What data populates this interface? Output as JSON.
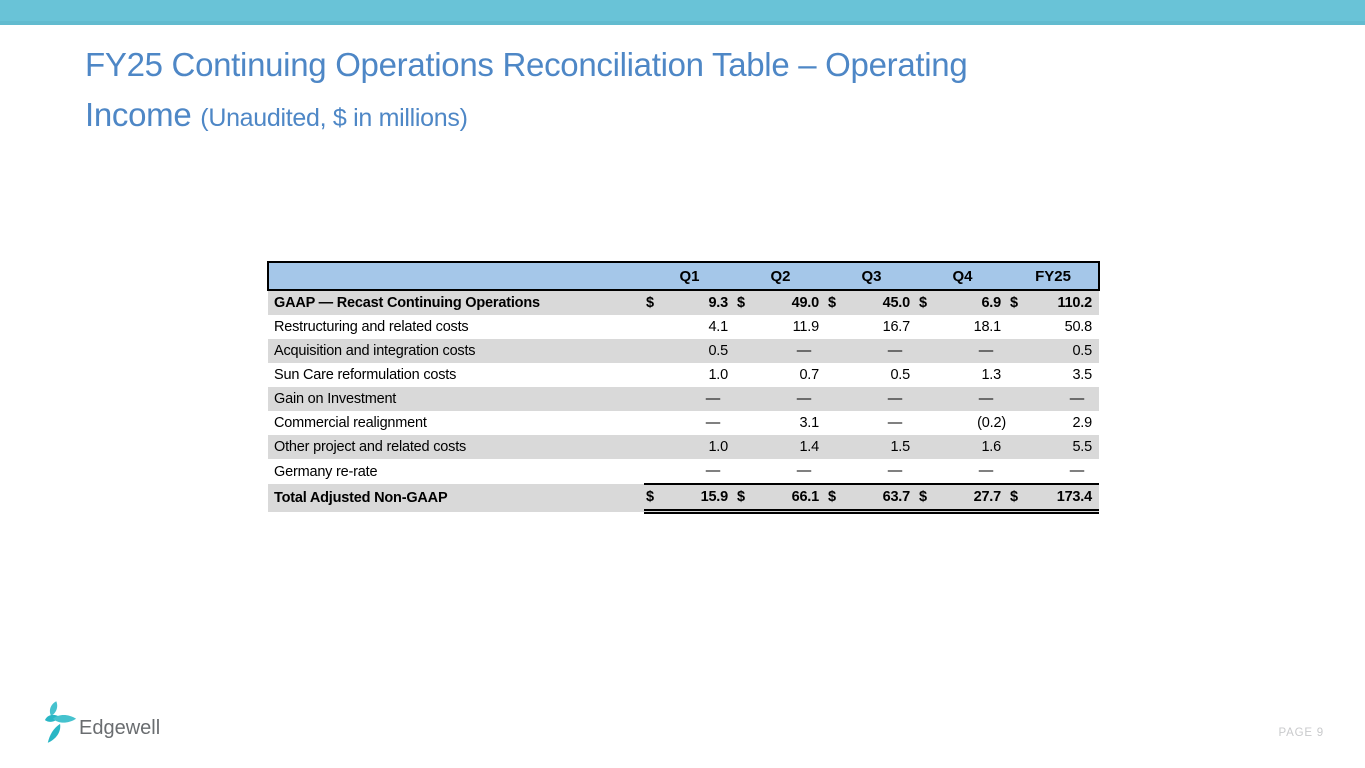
{
  "slide": {
    "title_line1": "FY25 Continuing Operations Reconciliation Table – Operating",
    "title_line2": "Income",
    "title_suffix": "(Unaudited, $ in millions)"
  },
  "table": {
    "currency_symbol": "$",
    "columns": [
      "Q1",
      "Q2",
      "Q3",
      "Q4",
      "FY25"
    ],
    "rows": [
      {
        "label": "GAAP — Recast Continuing Operations",
        "dollar": true,
        "bold": true,
        "shaded": true,
        "total": false,
        "values": [
          "9.3",
          "49.0",
          "45.0",
          "6.9",
          "110.2"
        ]
      },
      {
        "label": "Restructuring and related costs",
        "dollar": false,
        "bold": false,
        "shaded": false,
        "total": false,
        "values": [
          "4.1",
          "11.9",
          "16.7",
          "18.1",
          "50.8"
        ]
      },
      {
        "label": "Acquisition and integration costs",
        "dollar": false,
        "bold": false,
        "shaded": true,
        "total": false,
        "values": [
          "0.5",
          "—",
          "—",
          "—",
          "0.5"
        ]
      },
      {
        "label": "Sun Care reformulation costs",
        "dollar": false,
        "bold": false,
        "shaded": false,
        "total": false,
        "values": [
          "1.0",
          "0.7",
          "0.5",
          "1.3",
          "3.5"
        ]
      },
      {
        "label": "Gain on Investment",
        "dollar": false,
        "bold": false,
        "shaded": true,
        "total": false,
        "values": [
          "—",
          "—",
          "—",
          "—",
          "—"
        ]
      },
      {
        "label": "Commercial realignment",
        "dollar": false,
        "bold": false,
        "shaded": false,
        "total": false,
        "values": [
          "—",
          "3.1",
          "—",
          "(0.2)",
          "2.9"
        ]
      },
      {
        "label": "Other project and related costs",
        "dollar": false,
        "bold": false,
        "shaded": true,
        "total": false,
        "values": [
          "1.0",
          "1.4",
          "1.5",
          "1.6",
          "5.5"
        ]
      },
      {
        "label": "Germany re-rate",
        "dollar": false,
        "bold": false,
        "shaded": false,
        "total": false,
        "values": [
          "—",
          "—",
          "—",
          "—",
          "—"
        ]
      },
      {
        "label": "Total Adjusted Non-GAAP",
        "dollar": true,
        "bold": true,
        "shaded": true,
        "total": true,
        "values": [
          "15.9",
          "66.1",
          "63.7",
          "27.7",
          "173.4"
        ]
      }
    ]
  },
  "footer": {
    "logo_text": "Edgewell",
    "page_label": "PAGE 9"
  },
  "colors": {
    "top_bar": "#69C3D7",
    "title_text": "#4E87C6",
    "table_header_bg": "#A5C7E9",
    "row_shade": "#D9D9D9",
    "logo_teal_light": "#45C2CE",
    "logo_teal_dark": "#29B6C5",
    "logo_text": "#6A6D70",
    "page_label": "#C9CACC"
  }
}
